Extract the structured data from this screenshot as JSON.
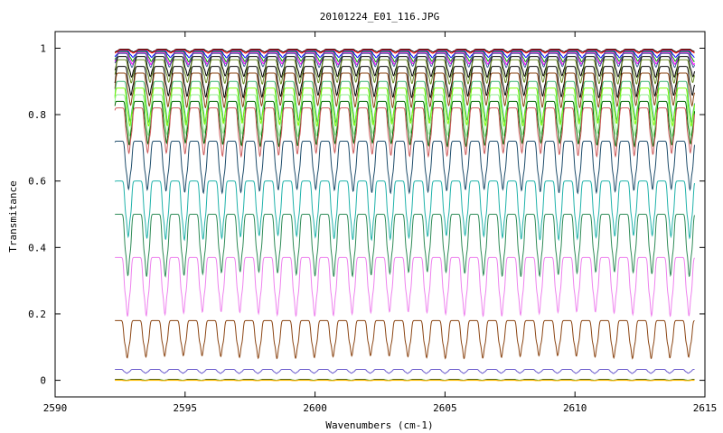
{
  "chart_data": {
    "type": "line",
    "title": "20101224_E01_116.JPG",
    "xlabel": "Wavenumbers (cm-1)",
    "ylabel": "Transmitance",
    "xlim": [
      2590,
      2615
    ],
    "ylim": [
      -0.05,
      1.05
    ],
    "x_ticks": [
      2590,
      2595,
      2600,
      2605,
      2610,
      2615
    ],
    "y_ticks": [
      0,
      0.2,
      0.4,
      0.6,
      0.8,
      1
    ],
    "y_tick_labels": [
      "0",
      "0.2",
      "0.4",
      "0.6",
      "0.8",
      "1"
    ],
    "x_range": [
      2592.3,
      2614.6
    ],
    "line_period": 0.72,
    "grid": false,
    "legend": "none",
    "series": [
      {
        "color": "#000000",
        "base": 0.997,
        "depth": 0.008
      },
      {
        "color": "#ff0000",
        "base": 0.995,
        "depth": 0.01
      },
      {
        "color": "#0000ff",
        "base": 0.992,
        "depth": 0.02
      },
      {
        "color": "#00aa00",
        "base": 0.99,
        "depth": 0.03
      },
      {
        "color": "#ff00ff",
        "base": 0.987,
        "depth": 0.035
      },
      {
        "color": "#3b5998",
        "base": 0.984,
        "depth": 0.04
      },
      {
        "color": "#000000",
        "base": 0.975,
        "depth": 0.06
      },
      {
        "color": "#6b8e23",
        "base": 0.965,
        "depth": 0.07
      },
      {
        "color": "#000000",
        "base": 0.945,
        "depth": 0.09
      },
      {
        "color": "#8b4513",
        "base": 0.925,
        "depth": 0.1
      },
      {
        "color": "#3cb371",
        "base": 0.9,
        "depth": 0.12
      },
      {
        "color": "#7cfc00",
        "base": 0.88,
        "depth": 0.11
      },
      {
        "color": "#90ee90",
        "base": 0.86,
        "depth": 0.12
      },
      {
        "color": "#006400",
        "base": 0.84,
        "depth": 0.13
      },
      {
        "color": "#cd5c5c",
        "base": 0.82,
        "depth": 0.14
      },
      {
        "color": "#1e4d6b",
        "base": 0.72,
        "depth": 0.15
      },
      {
        "color": "#20b2aa",
        "base": 0.6,
        "depth": 0.17
      },
      {
        "color": "#2e8b57",
        "base": 0.5,
        "depth": 0.18
      },
      {
        "color": "#ee82ee",
        "base": 0.37,
        "depth": 0.17
      },
      {
        "color": "#8b4513",
        "base": 0.18,
        "depth": 0.11
      },
      {
        "color": "#6a5acd",
        "base": 0.033,
        "depth": 0.012
      },
      {
        "color": "#228b22",
        "base": 0.003,
        "depth": 0.003
      },
      {
        "color": "#ff0000",
        "base": 0.001,
        "depth": 0.002
      },
      {
        "color": "#ffd700",
        "base": 0.0,
        "depth": 0.001
      }
    ]
  }
}
